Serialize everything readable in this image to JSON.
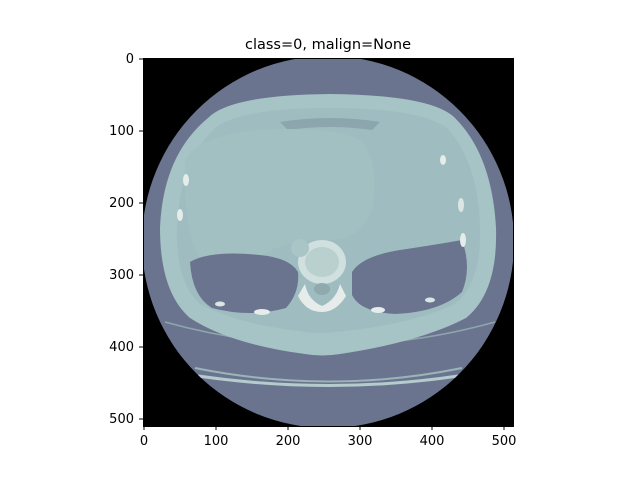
{
  "figure": {
    "title": "class=0, malign=None"
  },
  "axes": {
    "x_ticks": [
      "0",
      "100",
      "200",
      "300",
      "400",
      "500"
    ],
    "y_ticks": [
      "0",
      "100",
      "200",
      "300",
      "400",
      "500"
    ],
    "x_range": [
      0,
      512
    ],
    "y_range": [
      0,
      512
    ],
    "y_inverted": true
  },
  "image": {
    "description_colors": {
      "background": "#000000",
      "field_of_view": "#6b748f",
      "soft_tissue": "#9ebcbf",
      "lung": "#6b748f",
      "bone": "#e6ecea"
    }
  }
}
